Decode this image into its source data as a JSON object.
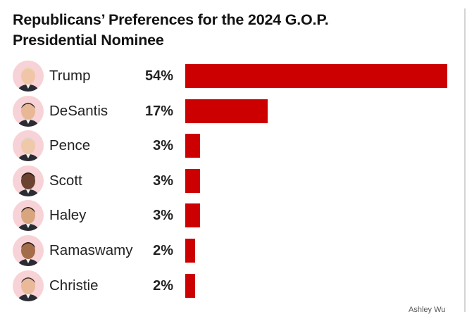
{
  "chart_data": {
    "type": "bar",
    "orientation": "horizontal",
    "title": "Republicans’ Preferences for the 2024 G.O.P. Presidential Nominee",
    "categories": [
      "Trump",
      "DeSantis",
      "Pence",
      "Scott",
      "Haley",
      "Ramaswamy",
      "Christie"
    ],
    "values": [
      54,
      17,
      3,
      3,
      3,
      2,
      2
    ],
    "value_labels": [
      "54%",
      "17%",
      "3%",
      "3%",
      "3%",
      "2%",
      "2%"
    ],
    "unit": "%",
    "xlim": [
      0,
      54
    ],
    "xlabel": "",
    "ylabel": "",
    "grid": false,
    "bar_color": "#cc0000",
    "avatar_color": "#f7d2d6"
  },
  "header": {
    "title": "Republicans’ Preferences for the 2024 G.O.P. Presidential Nominee"
  },
  "credit": "Ashley Wu"
}
